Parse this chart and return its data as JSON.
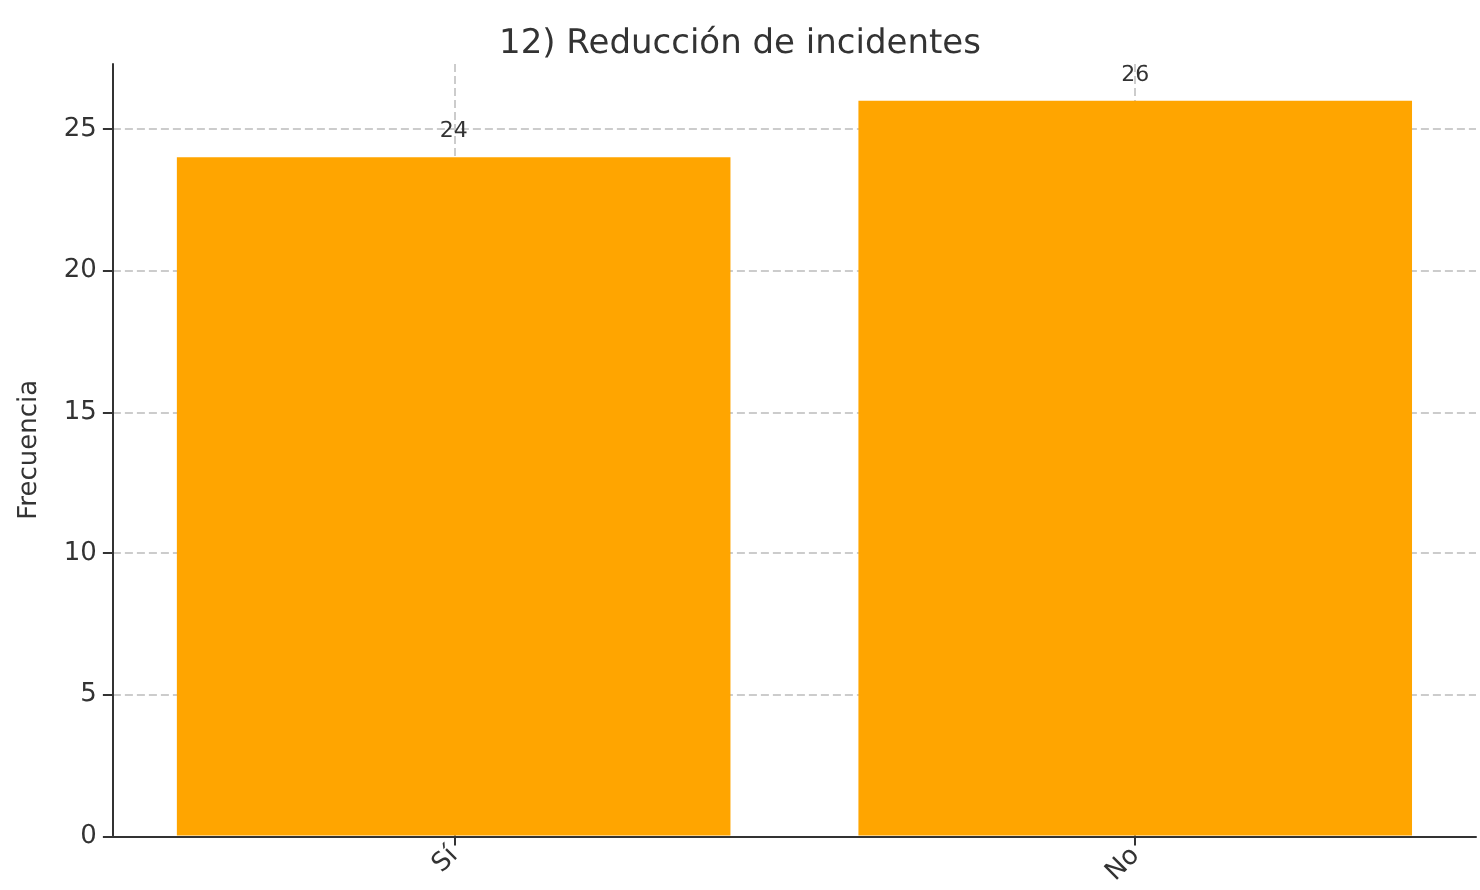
{
  "chart_data": {
    "type": "bar",
    "title": "12) Reducción de incidentes",
    "ylabel": "Frecuencia",
    "categories": [
      "Sí",
      "No"
    ],
    "values": [
      24,
      26
    ],
    "color": "#ffa500",
    "ylim": [
      0,
      27.3
    ],
    "yticks": [
      0,
      5,
      10,
      15,
      20,
      25
    ],
    "grid": true,
    "data_labels": true
  }
}
